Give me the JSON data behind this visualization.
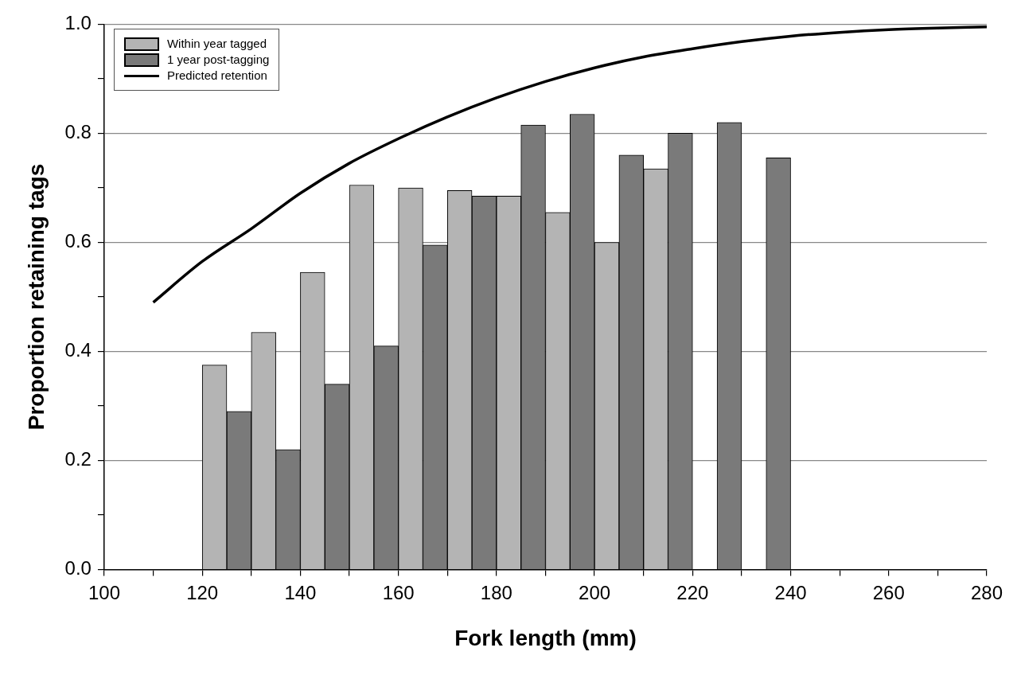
{
  "chart_data": {
    "type": "bar",
    "xlabel": "Fork length (mm)",
    "ylabel": "Proportion retaining tags",
    "xlim": [
      100,
      280
    ],
    "ylim": [
      0,
      1
    ],
    "xticks": [
      100,
      {
        "value": 110,
        "label": null
      },
      120,
      {
        "value": 130,
        "label": null
      },
      140,
      {
        "value": 150,
        "label": null
      },
      160,
      {
        "value": 170,
        "label": null
      },
      180,
      {
        "value": 190,
        "label": null
      },
      200,
      {
        "value": 210,
        "label": null
      },
      220,
      {
        "value": 230,
        "label": null
      },
      240,
      {
        "value": 250,
        "label": null
      },
      260,
      {
        "value": 270,
        "label": null
      },
      280
    ],
    "yticks": [
      {
        "value": 0,
        "label": "0.0"
      },
      {
        "value": 0.1,
        "label": null
      },
      0.2,
      {
        "value": 0.3,
        "label": null
      },
      0.4,
      {
        "value": 0.5,
        "label": null
      },
      0.6,
      {
        "value": 0.7,
        "label": null
      },
      0.8,
      {
        "value": 0.9,
        "label": null
      },
      {
        "value": 1,
        "label": "1.0"
      }
    ],
    "grid": "y",
    "legend": "top left",
    "series": [
      {
        "name": "Within year tagged",
        "color": "#b4b4b4",
        "x": [
          122.5,
          132.5,
          142.5,
          152.5,
          162.5,
          172.5,
          182.5,
          192.5,
          202.5,
          212.5
        ],
        "values": [
          0.375,
          0.435,
          0.545,
          0.705,
          0.7,
          0.695,
          0.685,
          0.655,
          0.6,
          0.735
        ]
      },
      {
        "name": "1 year post-tagging",
        "color": "#7a7a7a",
        "x": [
          127.5,
          137.5,
          147.5,
          157.5,
          167.5,
          177.5,
          187.5,
          197.5,
          207.5,
          217.5,
          227.5,
          237.5
        ],
        "values": [
          0.29,
          0.22,
          0.34,
          0.41,
          0.595,
          0.685,
          0.815,
          0.835,
          0.76,
          0.8,
          0.82,
          0.755
        ]
      },
      {
        "name": "Predicted retention",
        "type": "line",
        "color": "#000000",
        "line_style": "solid",
        "marker": "none",
        "x": [
          110,
          120,
          130,
          140,
          150,
          160,
          170,
          180,
          190,
          200,
          210,
          220,
          230,
          240,
          250,
          260,
          270,
          280
        ],
        "values": [
          0.49,
          0.565,
          0.625,
          0.69,
          0.745,
          0.79,
          0.83,
          0.865,
          0.895,
          0.92,
          0.94,
          0.955,
          0.968,
          0.978,
          0.985,
          0.99,
          0.993,
          0.995
        ]
      }
    ]
  }
}
